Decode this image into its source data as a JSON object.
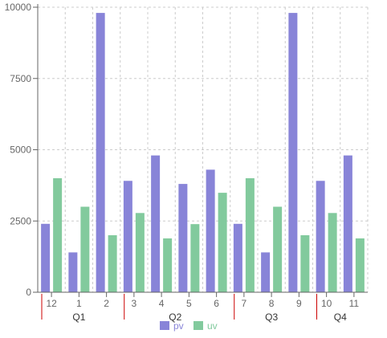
{
  "chart_data": {
    "type": "bar",
    "categories": [
      "12",
      "1",
      "2",
      "3",
      "4",
      "5",
      "6",
      "7",
      "8",
      "9",
      "10",
      "11"
    ],
    "groups": [
      {
        "label": "Q1",
        "categories": [
          "12",
          "1",
          "2"
        ]
      },
      {
        "label": "Q2",
        "categories": [
          "3",
          "4",
          "5",
          "6"
        ]
      },
      {
        "label": "Q3",
        "categories": [
          "7",
          "8",
          "9"
        ]
      },
      {
        "label": "Q4",
        "categories": [
          "10",
          "11"
        ]
      }
    ],
    "series": [
      {
        "name": "pv",
        "color": "#8884d8",
        "values": [
          2400,
          1398,
          9800,
          3908,
          4800,
          3800,
          4300,
          2400,
          1398,
          9800,
          3908,
          4800
        ]
      },
      {
        "name": "uv",
        "color": "#82ca9d",
        "values": [
          4000,
          3000,
          2000,
          2780,
          1890,
          2390,
          3490,
          4000,
          3000,
          2000,
          2780,
          1890
        ]
      }
    ],
    "ylim": [
      0,
      10000
    ],
    "yticks": [
      0,
      2500,
      5000,
      7500,
      10000
    ],
    "grid": true,
    "grid_style": "dashed",
    "legend_position": "bottom",
    "group_divider_color": "#cc0000",
    "title": "",
    "xlabel": "",
    "ylabel": ""
  }
}
